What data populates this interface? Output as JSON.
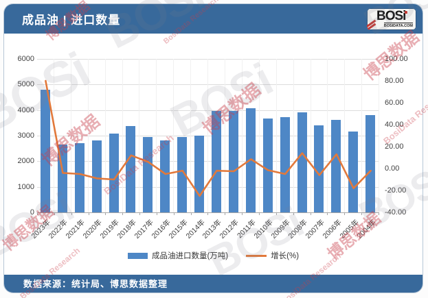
{
  "header": {
    "title": "成品油 | 进口数量",
    "logo": {
      "text": "BOSi",
      "domain": "BOSIDATA.COM"
    }
  },
  "footer": {
    "source": "数据来源：统计局、博思数据整理"
  },
  "watermarks": {
    "cn": "博思数据",
    "en": "BosiData Research",
    "logo": "BOSi"
  },
  "colors": {
    "header_bg": "#38699B",
    "bar": "#4E87C6",
    "line": "#E2793B",
    "grid": "#DCDCDC",
    "axis_text": "#3F3F3F",
    "logo_red": "#C43A35"
  },
  "chart_data": {
    "type": "bar",
    "subtype": "combo-bar-line-dual-axis",
    "title": "成品油 | 进口数量",
    "categories": [
      "2023年",
      "2022年",
      "2021年",
      "2020年",
      "2019年",
      "2018年",
      "2017年",
      "2016年",
      "2015年",
      "2014年",
      "2013年",
      "2012年",
      "2011年",
      "2010年",
      "2009年",
      "2008年",
      "2007年",
      "2006年",
      "2005年",
      "2004年"
    ],
    "series": [
      {
        "name": "成品油进口数量(万吨)",
        "type": "bar",
        "axis": "left",
        "color": "#4E87C6",
        "values": [
          4800,
          2650,
          2700,
          2820,
          3080,
          3370,
          2950,
          2800,
          2960,
          3010,
          3960,
          3970,
          4060,
          3680,
          3720,
          3900,
          3390,
          3620,
          3150,
          3800
        ]
      },
      {
        "name": "增长(%)",
        "type": "line",
        "axis": "right",
        "color": "#E2793B",
        "values": [
          80,
          -4,
          -5,
          -9,
          -10,
          12,
          6,
          -5,
          -2,
          -25,
          -2,
          -2.5,
          8.5,
          -1.5,
          -5,
          14,
          -6,
          13,
          -18,
          -2
        ]
      }
    ],
    "left_axis": {
      "min": 0,
      "max": 6000,
      "step": 1000,
      "tick_labels": [
        "6000",
        "5000",
        "4000",
        "3000",
        "2000",
        "1000",
        "0"
      ]
    },
    "right_axis": {
      "min": -40,
      "max": 100,
      "step": 20,
      "tick_labels": [
        "100.00",
        "80.00",
        "60.00",
        "40.00",
        "20.00",
        "0.00",
        "-20.00",
        "-40.00"
      ]
    },
    "legend": [
      "成品油进口数量(万吨)",
      "增长(%)"
    ],
    "legend_position": "bottom",
    "grid": true
  }
}
